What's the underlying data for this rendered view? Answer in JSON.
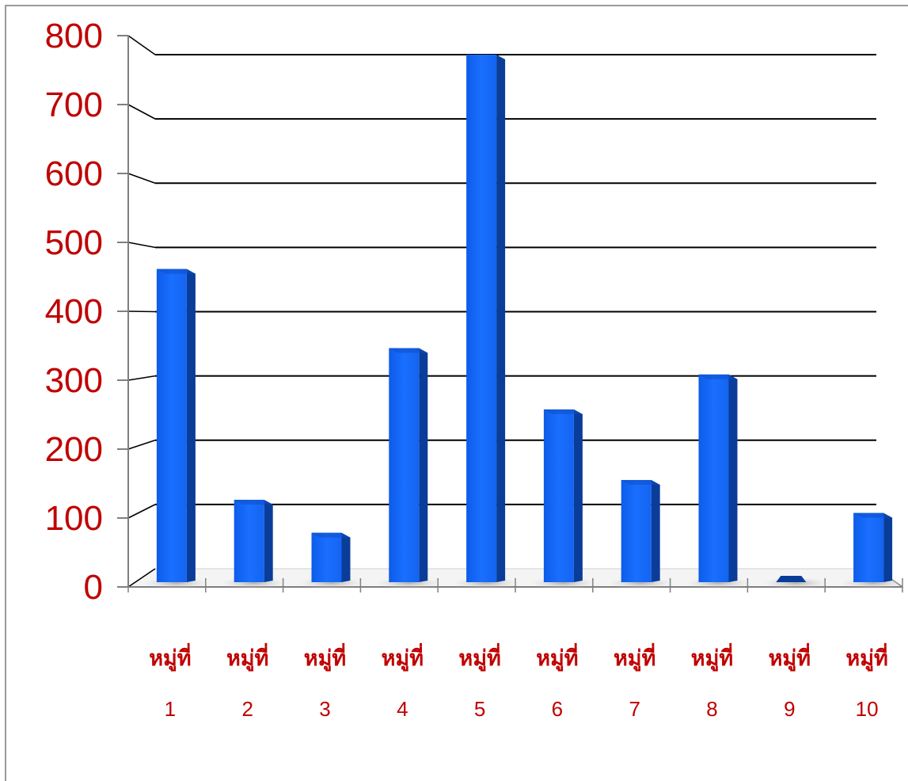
{
  "chart_data": {
    "type": "bar",
    "title": "",
    "xlabel": "",
    "ylabel": "",
    "ylim": [
      0,
      800
    ],
    "yticks": [
      "0",
      "100",
      "200",
      "300",
      "400",
      "500",
      "600",
      "700",
      "800"
    ],
    "grid": true,
    "legend": "none",
    "categories": [
      {
        "line1": "หมู่ที่",
        "line2": "1"
      },
      {
        "line1": "หมู่ที่",
        "line2": "2"
      },
      {
        "line1": "หมู่ที่",
        "line2": "3"
      },
      {
        "line1": "หมู่ที่",
        "line2": "4"
      },
      {
        "line1": "หมู่ที่",
        "line2": "5"
      },
      {
        "line1": "หมู่ที่",
        "line2": "6"
      },
      {
        "line1": "หมู่ที่",
        "line2": "7"
      },
      {
        "line1": "หมู่ที่",
        "line2": "8"
      },
      {
        "line1": "หมู่ที่",
        "line2": "9"
      },
      {
        "line1": "หมู่ที่",
        "line2": "10"
      }
    ],
    "values": [
      475,
      125,
      75,
      355,
      820,
      262,
      155,
      315,
      2,
      105
    ],
    "colors": {
      "bar_front": "#1a6fff",
      "bar_side": "#0a3d9a",
      "bar_top": "#0f4fc8",
      "labels": "#c00000",
      "grid": "#000000",
      "axis": "#7f7f7f"
    }
  }
}
